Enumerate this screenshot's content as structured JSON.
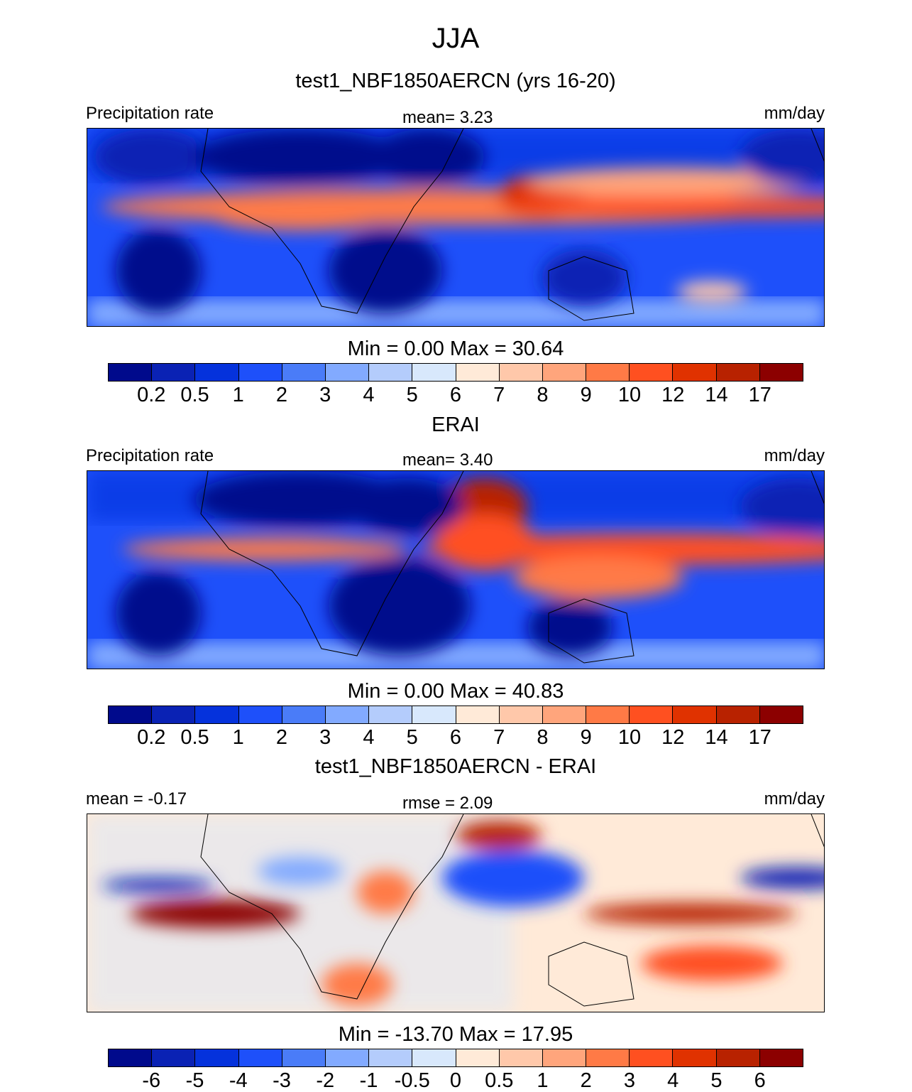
{
  "title": "JJA",
  "chart_data": {
    "type": "heatmap",
    "colors": [
      "#000a8c",
      "#0a22b4",
      "#0532dc",
      "#1e50fa",
      "#4a7cf8",
      "#82aaff",
      "#b4ccfc",
      "#d8e8fc",
      "#ffead8",
      "#ffc8aa",
      "#ffa57c",
      "#ff7a46",
      "#ff5020",
      "#e03200",
      "#b82200",
      "#8c0000"
    ],
    "panels": [
      {
        "title": "test1_NBF1850AERCN (yrs 16-20)",
        "left": "Precipitation rate",
        "center": "mean=   3.23",
        "right": "mm/day",
        "minmax": "Min =    0.00 Max =   30.64",
        "levels": [
          "0.2",
          "0.5",
          "1",
          "2",
          "3",
          "4",
          "5",
          "6",
          "7",
          "8",
          "9",
          "10",
          "12",
          "14",
          "17"
        ]
      },
      {
        "title": "ERAI",
        "left": "Precipitation rate",
        "center": "mean=   3.40",
        "right": "mm/day",
        "minmax": "Min =    0.00 Max =   40.83",
        "levels": [
          "0.2",
          "0.5",
          "1",
          "2",
          "3",
          "4",
          "5",
          "6",
          "7",
          "8",
          "9",
          "10",
          "12",
          "14",
          "17"
        ]
      },
      {
        "title": "test1_NBF1850AERCN - ERAI",
        "left": "mean =  -0.17",
        "center": "rmse =    2.09",
        "right": "mm/day",
        "minmax": "Min = -13.70 Max =   17.95",
        "levels": [
          "-6",
          "-5",
          "-4",
          "-3",
          "-2",
          "-1",
          "-0.5",
          "0",
          "0.5",
          "1",
          "2",
          "3",
          "4",
          "5",
          "6"
        ]
      }
    ]
  }
}
